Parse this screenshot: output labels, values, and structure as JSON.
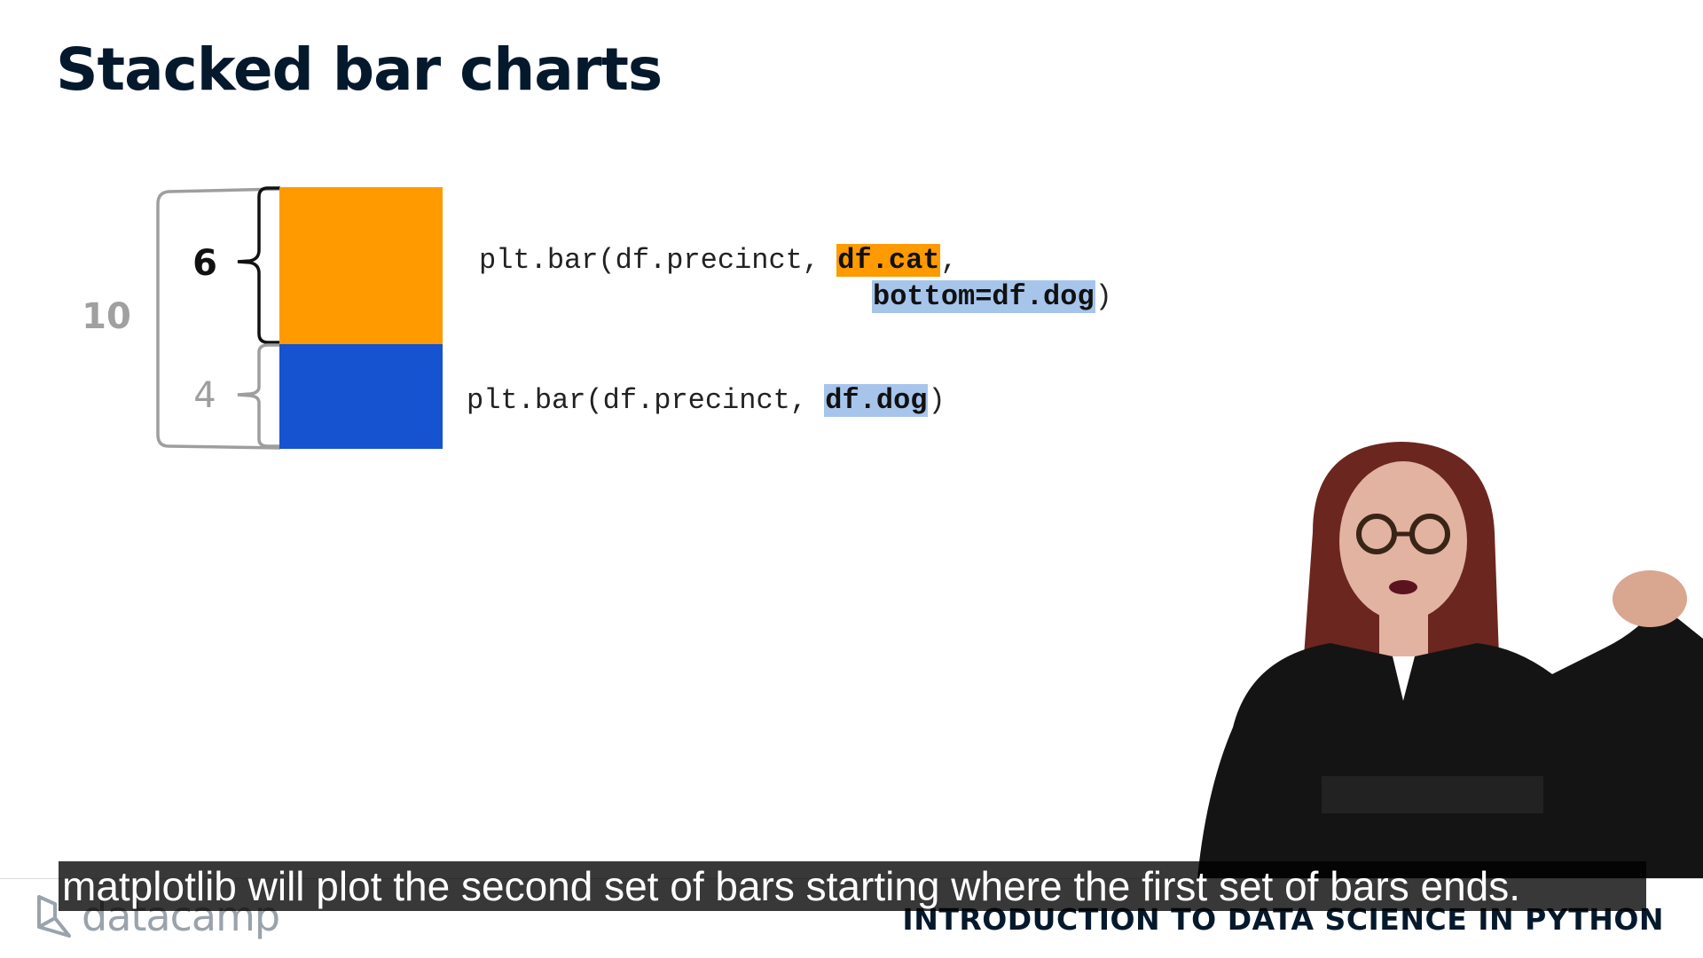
{
  "slide": {
    "title": "Stacked bar charts"
  },
  "diagram": {
    "total_label": "10",
    "cat_label": "6",
    "dog_label": "4",
    "cat_color": "#ff9a00",
    "dog_color": "#1553d1"
  },
  "code": {
    "cat_line1_prefix": "plt.bar(df.precinct, ",
    "cat_arg": "df.cat",
    "cat_line1_suffix": ",",
    "cat_line2_arg": "bottom=df.dog",
    "cat_line2_suffix": ")",
    "dog_prefix": "plt.bar(df.precinct, ",
    "dog_arg": "df.dog",
    "dog_suffix": ")"
  },
  "subtitle": "matplotlib will plot the second set of bars starting where the first set of bars ends.",
  "footer": {
    "logo_text": "datacamp",
    "course_title": "INTRODUCTION TO DATA SCIENCE IN PYTHON"
  }
}
